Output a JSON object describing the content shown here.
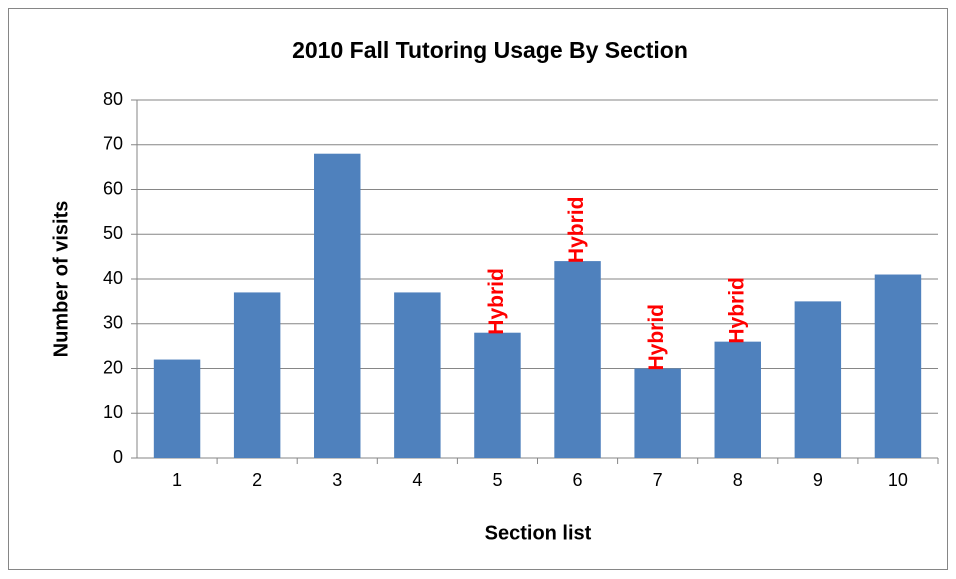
{
  "chart_data": {
    "type": "bar",
    "title": "2010 Fall Tutoring Usage By Section",
    "x_label": "Section list",
    "y_label": "Number of visits",
    "categories": [
      "1",
      "2",
      "3",
      "4",
      "5",
      "6",
      "7",
      "8",
      "9",
      "10"
    ],
    "values": [
      22,
      37,
      68,
      37,
      28,
      44,
      20,
      26,
      35,
      41
    ],
    "color": "#4f81bd",
    "ylim": [
      0,
      80
    ],
    "yticks": [
      0,
      10,
      20,
      30,
      40,
      50,
      60,
      70,
      80
    ],
    "grid": true,
    "annotations": [
      {
        "text": "Hybrid",
        "category": "5"
      },
      {
        "text": "Hybrid",
        "category": "6"
      },
      {
        "text": "Hybrid",
        "category": "7"
      },
      {
        "text": "Hybrid",
        "category": "8"
      }
    ],
    "annotation_color": "#ff0000"
  }
}
